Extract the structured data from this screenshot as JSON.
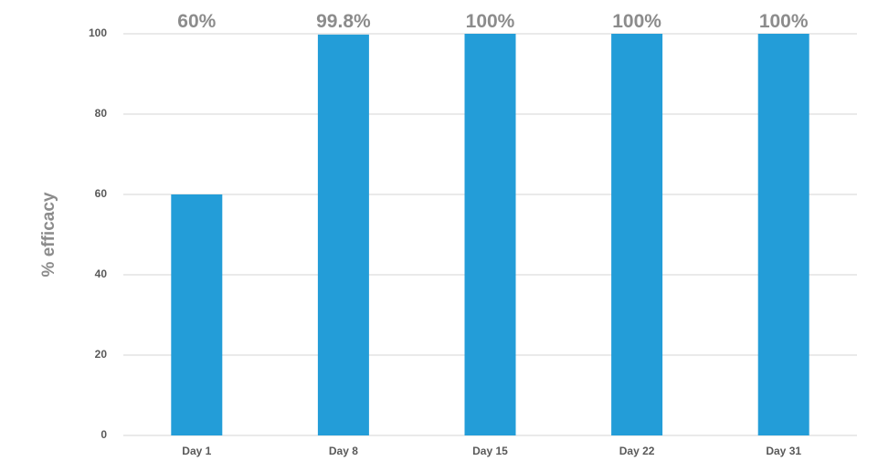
{
  "chart_data": {
    "type": "bar",
    "categories": [
      "Day 1",
      "Day 8",
      "Day 15",
      "Day 22",
      "Day 31"
    ],
    "values": [
      60,
      99.8,
      100,
      100,
      100
    ],
    "data_labels": [
      "60%",
      "99.8%",
      "100%",
      "100%",
      "100%"
    ],
    "ylabel": "% efficacy",
    "xlabel": "",
    "ylim": [
      0,
      100
    ],
    "yticks": [
      "0",
      "20",
      "40",
      "60",
      "80",
      "100"
    ],
    "grid": true,
    "bar_color": "#239dd8"
  }
}
